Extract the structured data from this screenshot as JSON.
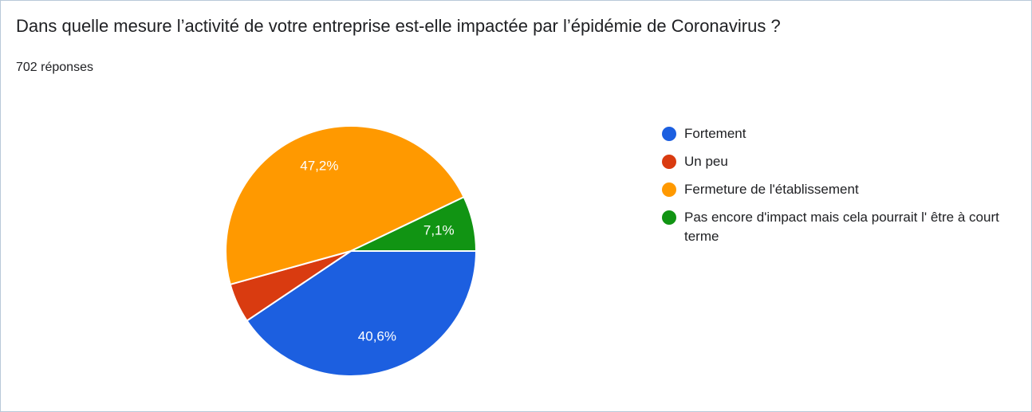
{
  "chart_data": {
    "type": "pie",
    "title": "Dans quelle mesure l’activité de votre entreprise est-elle impactée par l’épidémie de Coronavirus ?",
    "subtitle": "702 réponses",
    "categories": [
      "Fortement",
      "Un peu",
      "Fermeture de l'établissement",
      "Pas encore d'impact mais cela pourrait l' être à court terme"
    ],
    "values": [
      40.6,
      5.1,
      47.2,
      7.1
    ],
    "value_labels": [
      "40,6%",
      null,
      "47,2%",
      "7,1%"
    ],
    "colors": [
      "#1c5fe0",
      "#d93b10",
      "#ff9900",
      "#119413"
    ],
    "legend": "right"
  }
}
